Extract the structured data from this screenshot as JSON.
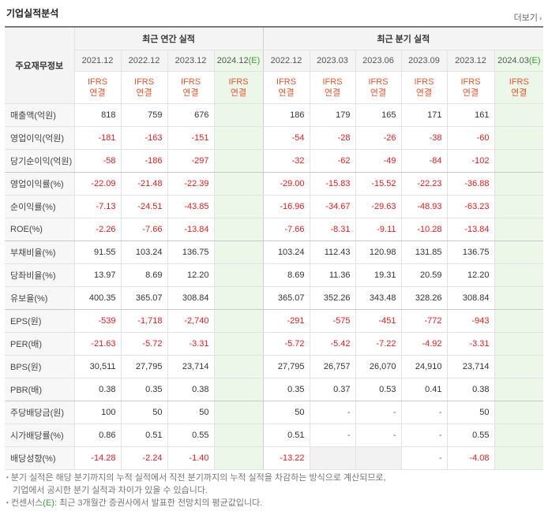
{
  "section": {
    "title": "기업실적분석",
    "more_label": "더보기"
  },
  "table": {
    "label_header": "주요재무정보",
    "group_annual": "최근 연간 실적",
    "group_quarter": "최근 분기 실적",
    "annual_periods": [
      "2021.12",
      "2022.12",
      "2023.12",
      "2024.12"
    ],
    "quarter_periods": [
      "2022.12",
      "2023.03",
      "2023.06",
      "2023.09",
      "2023.12",
      "2024.03"
    ],
    "estimate_mark": "(E)",
    "ifrs_label": "IFRS",
    "basis_label": "연결",
    "rows": [
      {
        "label": "매출액(억원)",
        "annual": [
          "818",
          "759",
          "676",
          ""
        ],
        "quarter": [
          "186",
          "179",
          "165",
          "171",
          "161",
          ""
        ]
      },
      {
        "label": "영업이익(억원)",
        "annual": [
          "-181",
          "-163",
          "-151",
          ""
        ],
        "quarter": [
          "-54",
          "-28",
          "-26",
          "-38",
          "-60",
          ""
        ]
      },
      {
        "label": "당기순이익(억원)",
        "annual": [
          "-58",
          "-186",
          "-297",
          ""
        ],
        "quarter": [
          "-32",
          "-62",
          "-49",
          "-84",
          "-102",
          ""
        ]
      },
      {
        "label": "영업이익률(%)",
        "annual": [
          "-22.09",
          "-21.48",
          "-22.39",
          ""
        ],
        "quarter": [
          "-29.00",
          "-15.83",
          "-15.52",
          "-22.23",
          "-36.88",
          ""
        ]
      },
      {
        "label": "순이익률(%)",
        "annual": [
          "-7.13",
          "-24.51",
          "-43.85",
          ""
        ],
        "quarter": [
          "-16.96",
          "-34.67",
          "-29.63",
          "-48.93",
          "-63.23",
          ""
        ]
      },
      {
        "label": "ROE(%)",
        "annual": [
          "-2.26",
          "-7.66",
          "-13.84",
          ""
        ],
        "quarter": [
          "-7.66",
          "-8.31",
          "-9.11",
          "-10.28",
          "-13.84",
          ""
        ]
      },
      {
        "label": "부채비율(%)",
        "annual": [
          "91.55",
          "103.24",
          "136.75",
          ""
        ],
        "quarter": [
          "103.24",
          "112.43",
          "120.98",
          "131.85",
          "136.75",
          ""
        ]
      },
      {
        "label": "당좌비율(%)",
        "annual": [
          "13.97",
          "8.69",
          "12.20",
          ""
        ],
        "quarter": [
          "8.69",
          "11.36",
          "19.31",
          "20.59",
          "12.20",
          ""
        ]
      },
      {
        "label": "유보율(%)",
        "annual": [
          "400.35",
          "365.07",
          "308.84",
          ""
        ],
        "quarter": [
          "365.07",
          "352.26",
          "343.48",
          "328.26",
          "308.84",
          ""
        ]
      },
      {
        "label": "EPS(원)",
        "annual": [
          "-539",
          "-1,718",
          "-2,740",
          ""
        ],
        "quarter": [
          "-291",
          "-575",
          "-451",
          "-772",
          "-943",
          ""
        ]
      },
      {
        "label": "PER(배)",
        "annual": [
          "-21.63",
          "-5.72",
          "-3.31",
          ""
        ],
        "quarter": [
          "-5.72",
          "-5.42",
          "-7.22",
          "-4.92",
          "-3.31",
          ""
        ]
      },
      {
        "label": "BPS(원)",
        "annual": [
          "30,511",
          "27,795",
          "23,714",
          ""
        ],
        "quarter": [
          "27,795",
          "26,757",
          "26,070",
          "24,910",
          "23,714",
          ""
        ]
      },
      {
        "label": "PBR(배)",
        "annual": [
          "0.38",
          "0.35",
          "0.38",
          ""
        ],
        "quarter": [
          "0.35",
          "0.37",
          "0.53",
          "0.41",
          "0.38",
          ""
        ]
      },
      {
        "label": "주당배당금(원)",
        "annual": [
          "100",
          "50",
          "50",
          ""
        ],
        "quarter": [
          "50",
          "-",
          "-",
          "-",
          "50",
          ""
        ]
      },
      {
        "label": "시가배당률(%)",
        "annual": [
          "0.86",
          "0.51",
          "0.55",
          ""
        ],
        "quarter": [
          "0.51",
          "-",
          "-",
          "-",
          "0.55",
          ""
        ]
      },
      {
        "label": "배당성향(%)",
        "annual": [
          "-14.28",
          "-2.24",
          "-1.40",
          ""
        ],
        "quarter": [
          "-13.22",
          "",
          "",
          "-",
          "-4.08",
          ""
        ]
      }
    ]
  },
  "notes": {
    "line1": "분기 실적은 해당 분기까지의 누적 실적에서 직전 분기까지의 누적 실적을 차감하는 방식으로 계산되므로,",
    "line2": "기업에서 공시한 분기 실적과 차이가 있을 수 있습니다.",
    "line3_prefix": "컨센서스",
    "line3_rest": ": 최근 3개월간 증권사에서 발표한 전망치의 평균값입니다."
  },
  "colors": {
    "negative": "#e02020",
    "ifrs": "#e4572e",
    "estimate_bg": "#edf7e9",
    "estimate_mark": "#3a9a3a"
  }
}
